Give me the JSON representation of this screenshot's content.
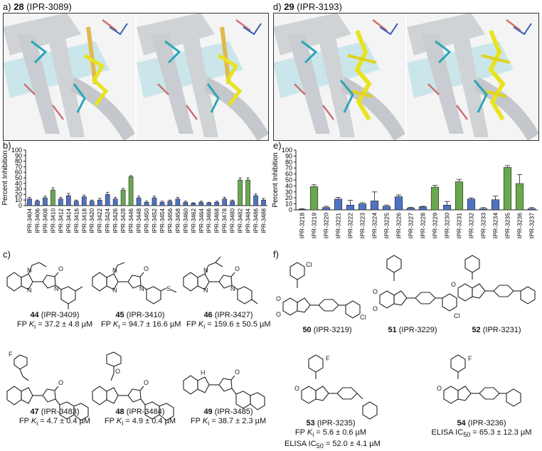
{
  "panels": {
    "a": {
      "letter": "a)",
      "compound": "28",
      "id": "(IPR-3089)"
    },
    "d": {
      "letter": "d)",
      "compound": "29",
      "id": "(IPR-3193)"
    },
    "b": {
      "letter": "b)"
    },
    "e": {
      "letter": "e)"
    },
    "c": {
      "letter": "c)"
    },
    "f": {
      "letter": "f)"
    }
  },
  "chart_data": [
    {
      "type": "bar",
      "ylabel": "Percent Inhibition",
      "ylim": [
        0,
        100
      ],
      "yticks": [
        0,
        10,
        20,
        30,
        40,
        50,
        60,
        70,
        80,
        90,
        100
      ],
      "categories": [
        "IPR-3404",
        "IPR-3406",
        "IPR-3408",
        "IPR-3410",
        "IPR-3412",
        "IPR-3414",
        "IPR-3416",
        "IPR-3418",
        "IPR-3420",
        "IPR-3422",
        "IPR-3424",
        "IPR-3426",
        "IPR-3428",
        "IPR-3446",
        "IPR-3448",
        "IPR-3450",
        "IPR-3452",
        "IPR-3454",
        "IPR-3456",
        "IPR-3458",
        "IPR-3460",
        "IPR-3462",
        "IPR-3464",
        "IPR-3466",
        "IPR-3468",
        "IPR-3478",
        "IPR-3480",
        "IPR-3482",
        "IPR-3484",
        "IPR-3486",
        "IPR-3488"
      ],
      "values": [
        12,
        8,
        14,
        28,
        12,
        18,
        8,
        16,
        8,
        10,
        20,
        12,
        28,
        52,
        14,
        6,
        14,
        6,
        8,
        12,
        6,
        4,
        6,
        5,
        6,
        12,
        8,
        46,
        46,
        18,
        10
      ],
      "errors": [
        3,
        2,
        3,
        4,
        3,
        4,
        2,
        3,
        2,
        3,
        4,
        3,
        3,
        2,
        3,
        2,
        3,
        2,
        2,
        3,
        2,
        1,
        2,
        1,
        2,
        3,
        2,
        4,
        4,
        3,
        3
      ],
      "highlight_color": "#6aa84f",
      "base_color": "#4f73c4",
      "highlighted_indices": [
        3,
        12,
        13,
        27,
        28
      ]
    },
    {
      "type": "bar",
      "ylabel": "Percent Inhibition",
      "ylim": [
        0,
        100
      ],
      "yticks": [
        0,
        10,
        20,
        30,
        40,
        50,
        60,
        70,
        80,
        90,
        100
      ],
      "categories": [
        "IPR-3218",
        "IPR-3219",
        "IPR-3220",
        "IPR-3221",
        "IPR-3222",
        "IPR-3223",
        "IPR-3224",
        "IPR-3225",
        "IPR-3226",
        "IPR-3227",
        "IPR-3228",
        "IPR-3229",
        "IPR-3230",
        "IPR-3231",
        "IPR-3232",
        "IPR-3233",
        "IPR-3234",
        "IPR-3235",
        "IPR-3236",
        "IPR-3237"
      ],
      "values": [
        1,
        39,
        4,
        18,
        8,
        10,
        15,
        6,
        22,
        3,
        5,
        38,
        8,
        47,
        18,
        2,
        17,
        71,
        44,
        2
      ],
      "errors": [
        1,
        3,
        2,
        3,
        8,
        2,
        15,
        2,
        3,
        1,
        1,
        3,
        6,
        4,
        2,
        2,
        6,
        3,
        15,
        2
      ],
      "highlight_color": "#6aa84f",
      "base_color": "#4f73c4",
      "highlighted_indices": [
        1,
        11,
        13,
        17,
        18
      ]
    }
  ],
  "compounds_c": [
    {
      "num": "44",
      "id": "(IPR-3409)",
      "fp_prefix": "FP ",
      "k": "K",
      "ksub": "i",
      "value": " = 37.2 ± 4.8 µM"
    },
    {
      "num": "45",
      "id": "(IPR-3410)",
      "fp_prefix": "FP ",
      "k": "K",
      "ksub": "i",
      "value": " = 94.7 ± 16.6 µM"
    },
    {
      "num": "46",
      "id": "(IPR-3427)",
      "fp_prefix": "FP ",
      "k": "K",
      "ksub": "i",
      "value": " = 159.6 ± 50.5 µM"
    },
    {
      "num": "47",
      "id": "(IPR-3483)",
      "fp_prefix": "FP ",
      "k": "K",
      "ksub": "i",
      "value": " = 4.7 ± 0.4 µM"
    },
    {
      "num": "48",
      "id": "(IPR-3484)",
      "fp_prefix": "FP ",
      "k": "K",
      "ksub": "i",
      "value": " = 4.9 ± 0.4 µM"
    },
    {
      "num": "49",
      "id": "(IPR-3485)",
      "fp_prefix": "FP ",
      "k": "K",
      "ksub": "i",
      "value": " = 38.7 ± 2.3 µM"
    }
  ],
  "compounds_f": [
    {
      "num": "50",
      "id": "(IPR-3219)"
    },
    {
      "num": "51",
      "id": "(IPR-3229)"
    },
    {
      "num": "52",
      "id": "(IPR-3231)"
    },
    {
      "num": "53",
      "id": "(IPR-3235)",
      "line2_prefix": "FP ",
      "line2_k": "K",
      "line2_sub": "i",
      "line2_value": " = 5.6 ± 0.6 µM",
      "line3_prefix": "ELISA IC",
      "line3_sub": "50",
      "line3_value": " = 52.0 ± 4.1 µM"
    },
    {
      "num": "54",
      "id": "(IPR-3236)",
      "line2_prefix": "ELISA IC",
      "line2_sub": "50",
      "line2_value": " = 65.3 ± 12.3 µM"
    }
  ],
  "atom_labels": {
    "N": "N",
    "O": "O",
    "H": "H",
    "F": "F",
    "Cl": "Cl",
    "S": "S"
  }
}
